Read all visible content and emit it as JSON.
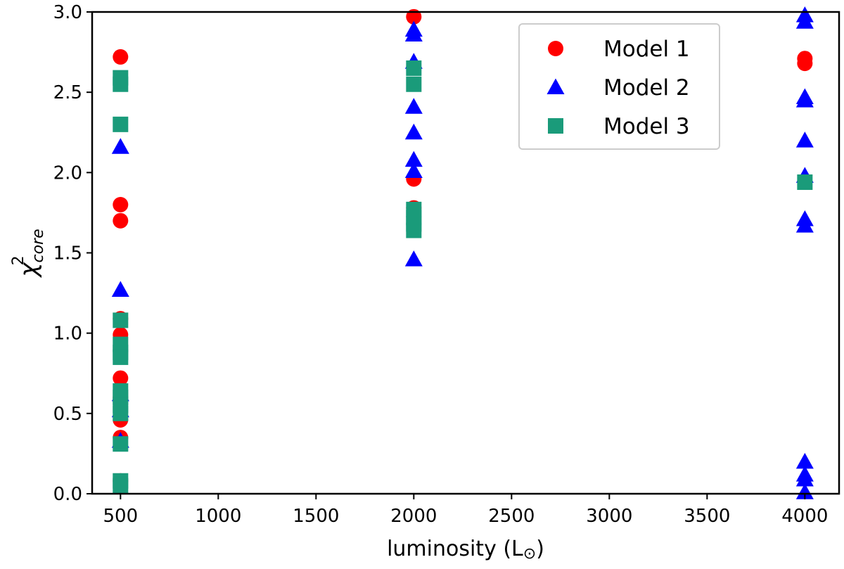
{
  "chart_data": {
    "type": "scatter",
    "title": "",
    "xlabel": "luminosity (L",
    "xlabel_symbol": "⊙",
    "xlabel_close": ")",
    "ylabel": "χ",
    "ylabel_sup": "2",
    "ylabel_sub": "core",
    "xlim": [
      355,
      4175
    ],
    "ylim": [
      0,
      3.0
    ],
    "xticks": [
      500,
      1000,
      1500,
      2000,
      2500,
      3000,
      3500,
      4000
    ],
    "yticks": [
      0.0,
      0.5,
      1.0,
      1.5,
      2.0,
      2.5,
      3.0
    ],
    "xtick_labels": [
      "500",
      "1000",
      "1500",
      "2000",
      "2500",
      "3000",
      "3500",
      "4000"
    ],
    "ytick_labels": [
      "0.0",
      "0.5",
      "1.0",
      "1.5",
      "2.0",
      "2.5",
      "3.0"
    ],
    "grid": false,
    "legend_position": "top-right",
    "series": [
      {
        "name": "Model 1",
        "marker": "circle",
        "color": "#ff0000",
        "points": [
          [
            500,
            2.72
          ],
          [
            500,
            1.8
          ],
          [
            500,
            1.7
          ],
          [
            500,
            1.09
          ],
          [
            500,
            0.99
          ],
          [
            500,
            0.72
          ],
          [
            500,
            0.6
          ],
          [
            500,
            0.46
          ],
          [
            500,
            0.35
          ],
          [
            500,
            0.08
          ],
          [
            2000,
            2.97
          ],
          [
            2000,
            1.96
          ],
          [
            2000,
            1.78
          ],
          [
            4000,
            2.71
          ],
          [
            4000,
            2.68
          ]
        ]
      },
      {
        "name": "Model 2",
        "marker": "triangle",
        "color": "#0000ff",
        "points": [
          [
            500,
            2.16
          ],
          [
            500,
            1.27
          ],
          [
            500,
            0.62
          ],
          [
            500,
            0.52
          ],
          [
            500,
            0.33
          ],
          [
            2000,
            2.89
          ],
          [
            2000,
            2.86
          ],
          [
            2000,
            2.69
          ],
          [
            2000,
            2.41
          ],
          [
            2000,
            2.25
          ],
          [
            2000,
            2.08
          ],
          [
            2000,
            2.01
          ],
          [
            2000,
            1.46
          ],
          [
            4000,
            2.98
          ],
          [
            4000,
            2.94
          ],
          [
            4000,
            2.47
          ],
          [
            4000,
            2.45
          ],
          [
            4000,
            2.2
          ],
          [
            4000,
            1.98
          ],
          [
            4000,
            1.71
          ],
          [
            4000,
            1.67
          ],
          [
            4000,
            0.2
          ],
          [
            4000,
            0.12
          ],
          [
            4000,
            0.09
          ],
          [
            4000,
            0.01
          ]
        ]
      },
      {
        "name": "Model 3",
        "marker": "square",
        "color": "#1a9b7a",
        "points": [
          [
            500,
            2.59
          ],
          [
            500,
            2.55
          ],
          [
            500,
            2.3
          ],
          [
            500,
            1.08
          ],
          [
            500,
            0.93
          ],
          [
            500,
            0.88
          ],
          [
            500,
            0.85
          ],
          [
            500,
            0.64
          ],
          [
            500,
            0.6
          ],
          [
            500,
            0.55
          ],
          [
            500,
            0.5
          ],
          [
            500,
            0.31
          ],
          [
            500,
            0.08
          ],
          [
            500,
            0.05
          ],
          [
            2000,
            2.65
          ],
          [
            2000,
            2.55
          ],
          [
            2000,
            1.77
          ],
          [
            2000,
            1.72
          ],
          [
            2000,
            1.68
          ],
          [
            2000,
            1.64
          ],
          [
            4000,
            1.94
          ]
        ]
      }
    ]
  }
}
